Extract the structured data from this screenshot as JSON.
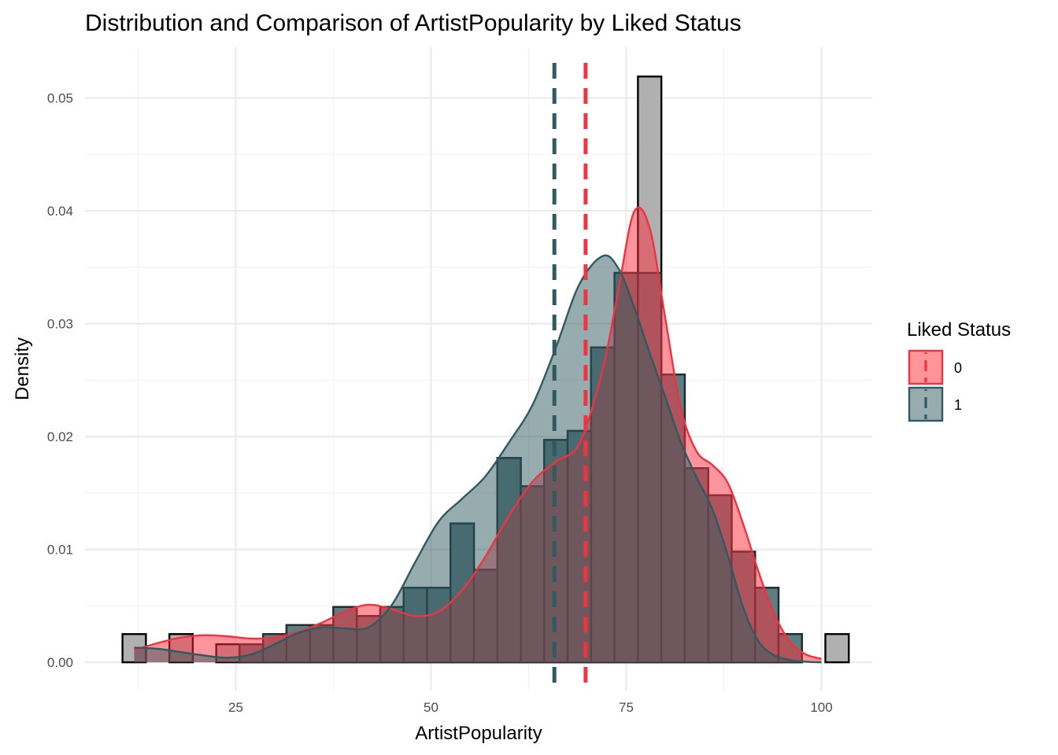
{
  "chart_data": {
    "type": "histogram",
    "title": "Distribution and Comparison of ArtistPopularity by Liked Status",
    "xlabel": "ArtistPopularity",
    "ylabel": "Density",
    "xlim": [
      5.7,
      106.5
    ],
    "ylim": [
      -0.0025,
      0.0545
    ],
    "x_ticks": [
      25,
      50,
      75,
      100
    ],
    "x_tick_labels": [
      "25",
      "50",
      "75",
      "100"
    ],
    "x_minor_ticks": [
      12.5,
      37.5,
      62.5,
      87.5
    ],
    "y_ticks": [
      0,
      0.01,
      0.02,
      0.03,
      0.04,
      0.05
    ],
    "y_tick_labels": [
      "0.00",
      "0.01",
      "0.02",
      "0.03",
      "0.04",
      "0.05"
    ],
    "y_minor_ticks": [
      0.005,
      0.015,
      0.025,
      0.035,
      0.045
    ],
    "grid": true,
    "legend": {
      "title": "Liked Status",
      "placement": "right",
      "entries": [
        {
          "label": "0",
          "fill": "#ff5a64",
          "line": "#ef3340"
        },
        {
          "label": "1",
          "fill": "#2f5a60",
          "line": "#2f5a60"
        }
      ]
    },
    "histogram": {
      "bin_width": 3,
      "bins": [
        {
          "x0": 10.5,
          "overall": 0.0025,
          "liked": 0
        },
        {
          "x0": 13.5,
          "overall": 0,
          "liked": 0
        },
        {
          "x0": 16.5,
          "overall": 0.0025,
          "liked": 0
        },
        {
          "x0": 19.5,
          "overall": 0,
          "liked": 0
        },
        {
          "x0": 22.5,
          "overall": 0.0016,
          "liked": 0
        },
        {
          "x0": 25.5,
          "overall": 0.0016,
          "liked": 0.0016
        },
        {
          "x0": 28.5,
          "overall": 0.0025,
          "liked": 0.0025
        },
        {
          "x0": 31.5,
          "overall": 0.0033,
          "liked": 0.0033
        },
        {
          "x0": 34.5,
          "overall": 0.0033,
          "liked": 0.0033
        },
        {
          "x0": 37.5,
          "overall": 0.0049,
          "liked": 0.0049
        },
        {
          "x0": 40.5,
          "overall": 0.0041,
          "liked": 0.0041
        },
        {
          "x0": 43.5,
          "overall": 0.0049,
          "liked": 0.0049
        },
        {
          "x0": 46.5,
          "overall": 0.0066,
          "liked": 0.0066
        },
        {
          "x0": 49.5,
          "overall": 0.0066,
          "liked": 0.0066
        },
        {
          "x0": 52.5,
          "overall": 0.0123,
          "liked": 0.0123
        },
        {
          "x0": 55.5,
          "overall": 0.0082,
          "liked": 0.0082
        },
        {
          "x0": 58.5,
          "overall": 0.0181,
          "liked": 0.0181
        },
        {
          "x0": 61.5,
          "overall": 0.0156,
          "liked": 0.0156
        },
        {
          "x0": 64.5,
          "overall": 0.0197,
          "liked": 0.0197
        },
        {
          "x0": 67.5,
          "overall": 0.0205,
          "liked": 0.0205
        },
        {
          "x0": 70.5,
          "overall": 0.0279,
          "liked": 0.0279
        },
        {
          "x0": 73.5,
          "overall": 0.0345,
          "liked": 0.0345
        },
        {
          "x0": 76.5,
          "overall": 0.0519,
          "liked": 0.0345
        },
        {
          "x0": 79.5,
          "overall": 0.0255,
          "liked": 0.0255
        },
        {
          "x0": 82.5,
          "overall": 0.0172,
          "liked": 0.0172
        },
        {
          "x0": 85.5,
          "overall": 0.0148,
          "liked": 0.0148
        },
        {
          "x0": 88.5,
          "overall": 0.0098,
          "liked": 0.0098
        },
        {
          "x0": 91.5,
          "overall": 0.0066,
          "liked": 0.0066
        },
        {
          "x0": 94.5,
          "overall": 0.0025,
          "liked": 0.0025
        },
        {
          "x0": 97.5,
          "overall": 0,
          "liked": 0
        },
        {
          "x0": 100.5,
          "overall": 0.0025,
          "liked": 0
        }
      ]
    },
    "series": [
      {
        "name": "0",
        "role": "density",
        "x": [
          12,
          15,
          18,
          21,
          24,
          27,
          30,
          33,
          36,
          39,
          42,
          45,
          48,
          51,
          54,
          57,
          60,
          63,
          66,
          69,
          72,
          74,
          76,
          78,
          80,
          82,
          84,
          86,
          88,
          90,
          92,
          94,
          96,
          98,
          100
        ],
        "y": [
          0.0011,
          0.0017,
          0.0022,
          0.0024,
          0.0023,
          0.0021,
          0.0022,
          0.0027,
          0.0035,
          0.0045,
          0.0051,
          0.0047,
          0.0041,
          0.0045,
          0.0064,
          0.0094,
          0.013,
          0.016,
          0.0178,
          0.0194,
          0.026,
          0.033,
          0.0399,
          0.0385,
          0.0305,
          0.0225,
          0.0187,
          0.0175,
          0.0159,
          0.0122,
          0.0079,
          0.0042,
          0.0018,
          0.0007,
          0.0003
        ]
      },
      {
        "name": "1",
        "role": "density",
        "x": [
          12,
          15,
          18,
          21,
          24,
          27,
          30,
          33,
          36,
          39,
          42,
          45,
          48,
          51,
          54,
          57,
          60,
          63,
          66,
          69,
          72,
          74,
          76,
          78,
          80,
          82,
          84,
          86,
          88,
          90,
          92,
          94,
          96,
          98,
          100
        ],
        "y": [
          0.0013,
          0.0012,
          0.0009,
          0.0006,
          0.0004,
          0.0007,
          0.0016,
          0.0026,
          0.0031,
          0.003,
          0.0031,
          0.0051,
          0.0089,
          0.0125,
          0.0145,
          0.0165,
          0.0195,
          0.0228,
          0.0279,
          0.0335,
          0.036,
          0.0349,
          0.0315,
          0.0274,
          0.0235,
          0.0195,
          0.0164,
          0.0136,
          0.0095,
          0.0048,
          0.0018,
          0.0006,
          0.0002,
          5e-05,
          0.0
        ]
      }
    ],
    "mean_lines": [
      {
        "group": "0",
        "x": 69.8,
        "color": "#ef3340"
      },
      {
        "group": "1",
        "x": 65.8,
        "color": "#2f5a60"
      }
    ]
  }
}
